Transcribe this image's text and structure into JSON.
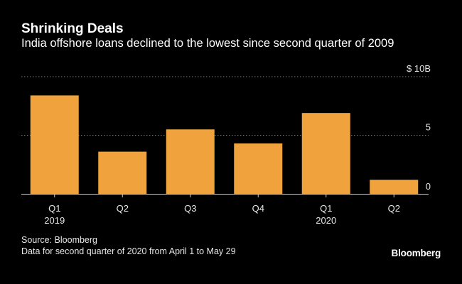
{
  "header": {
    "title": "Shrinking Deals",
    "subtitle": "India offshore loans declined to the lowest since second quarter of 2009"
  },
  "chart_data": {
    "type": "bar",
    "categories": [
      "Q1 2019",
      "Q2",
      "Q3",
      "Q4",
      "Q1 2020",
      "Q2"
    ],
    "category_lines": [
      [
        "Q1",
        "2019"
      ],
      [
        "Q2"
      ],
      [
        "Q3"
      ],
      [
        "Q4"
      ],
      [
        "Q1",
        "2020"
      ],
      [
        "Q2"
      ]
    ],
    "values": [
      8.4,
      3.6,
      5.5,
      4.3,
      6.9,
      1.2
    ],
    "title": "Shrinking Deals",
    "subtitle": "India offshore loans declined to the lowest since second quarter of 2009",
    "xlabel": "",
    "ylabel": "",
    "ylim": [
      0,
      10
    ],
    "y_ticks": [
      {
        "value": 0,
        "label": "0"
      },
      {
        "value": 5,
        "label": "5"
      },
      {
        "value": 10,
        "label": "$ 10B"
      }
    ],
    "y_axis_side": "right",
    "grid": true,
    "bar_color": "#f0a23c",
    "gridline_color": "#777777"
  },
  "footer": {
    "source": "Source: Bloomberg",
    "note": "Data for second quarter of 2020 from April 1 to May 29",
    "brand": "Bloomberg"
  }
}
